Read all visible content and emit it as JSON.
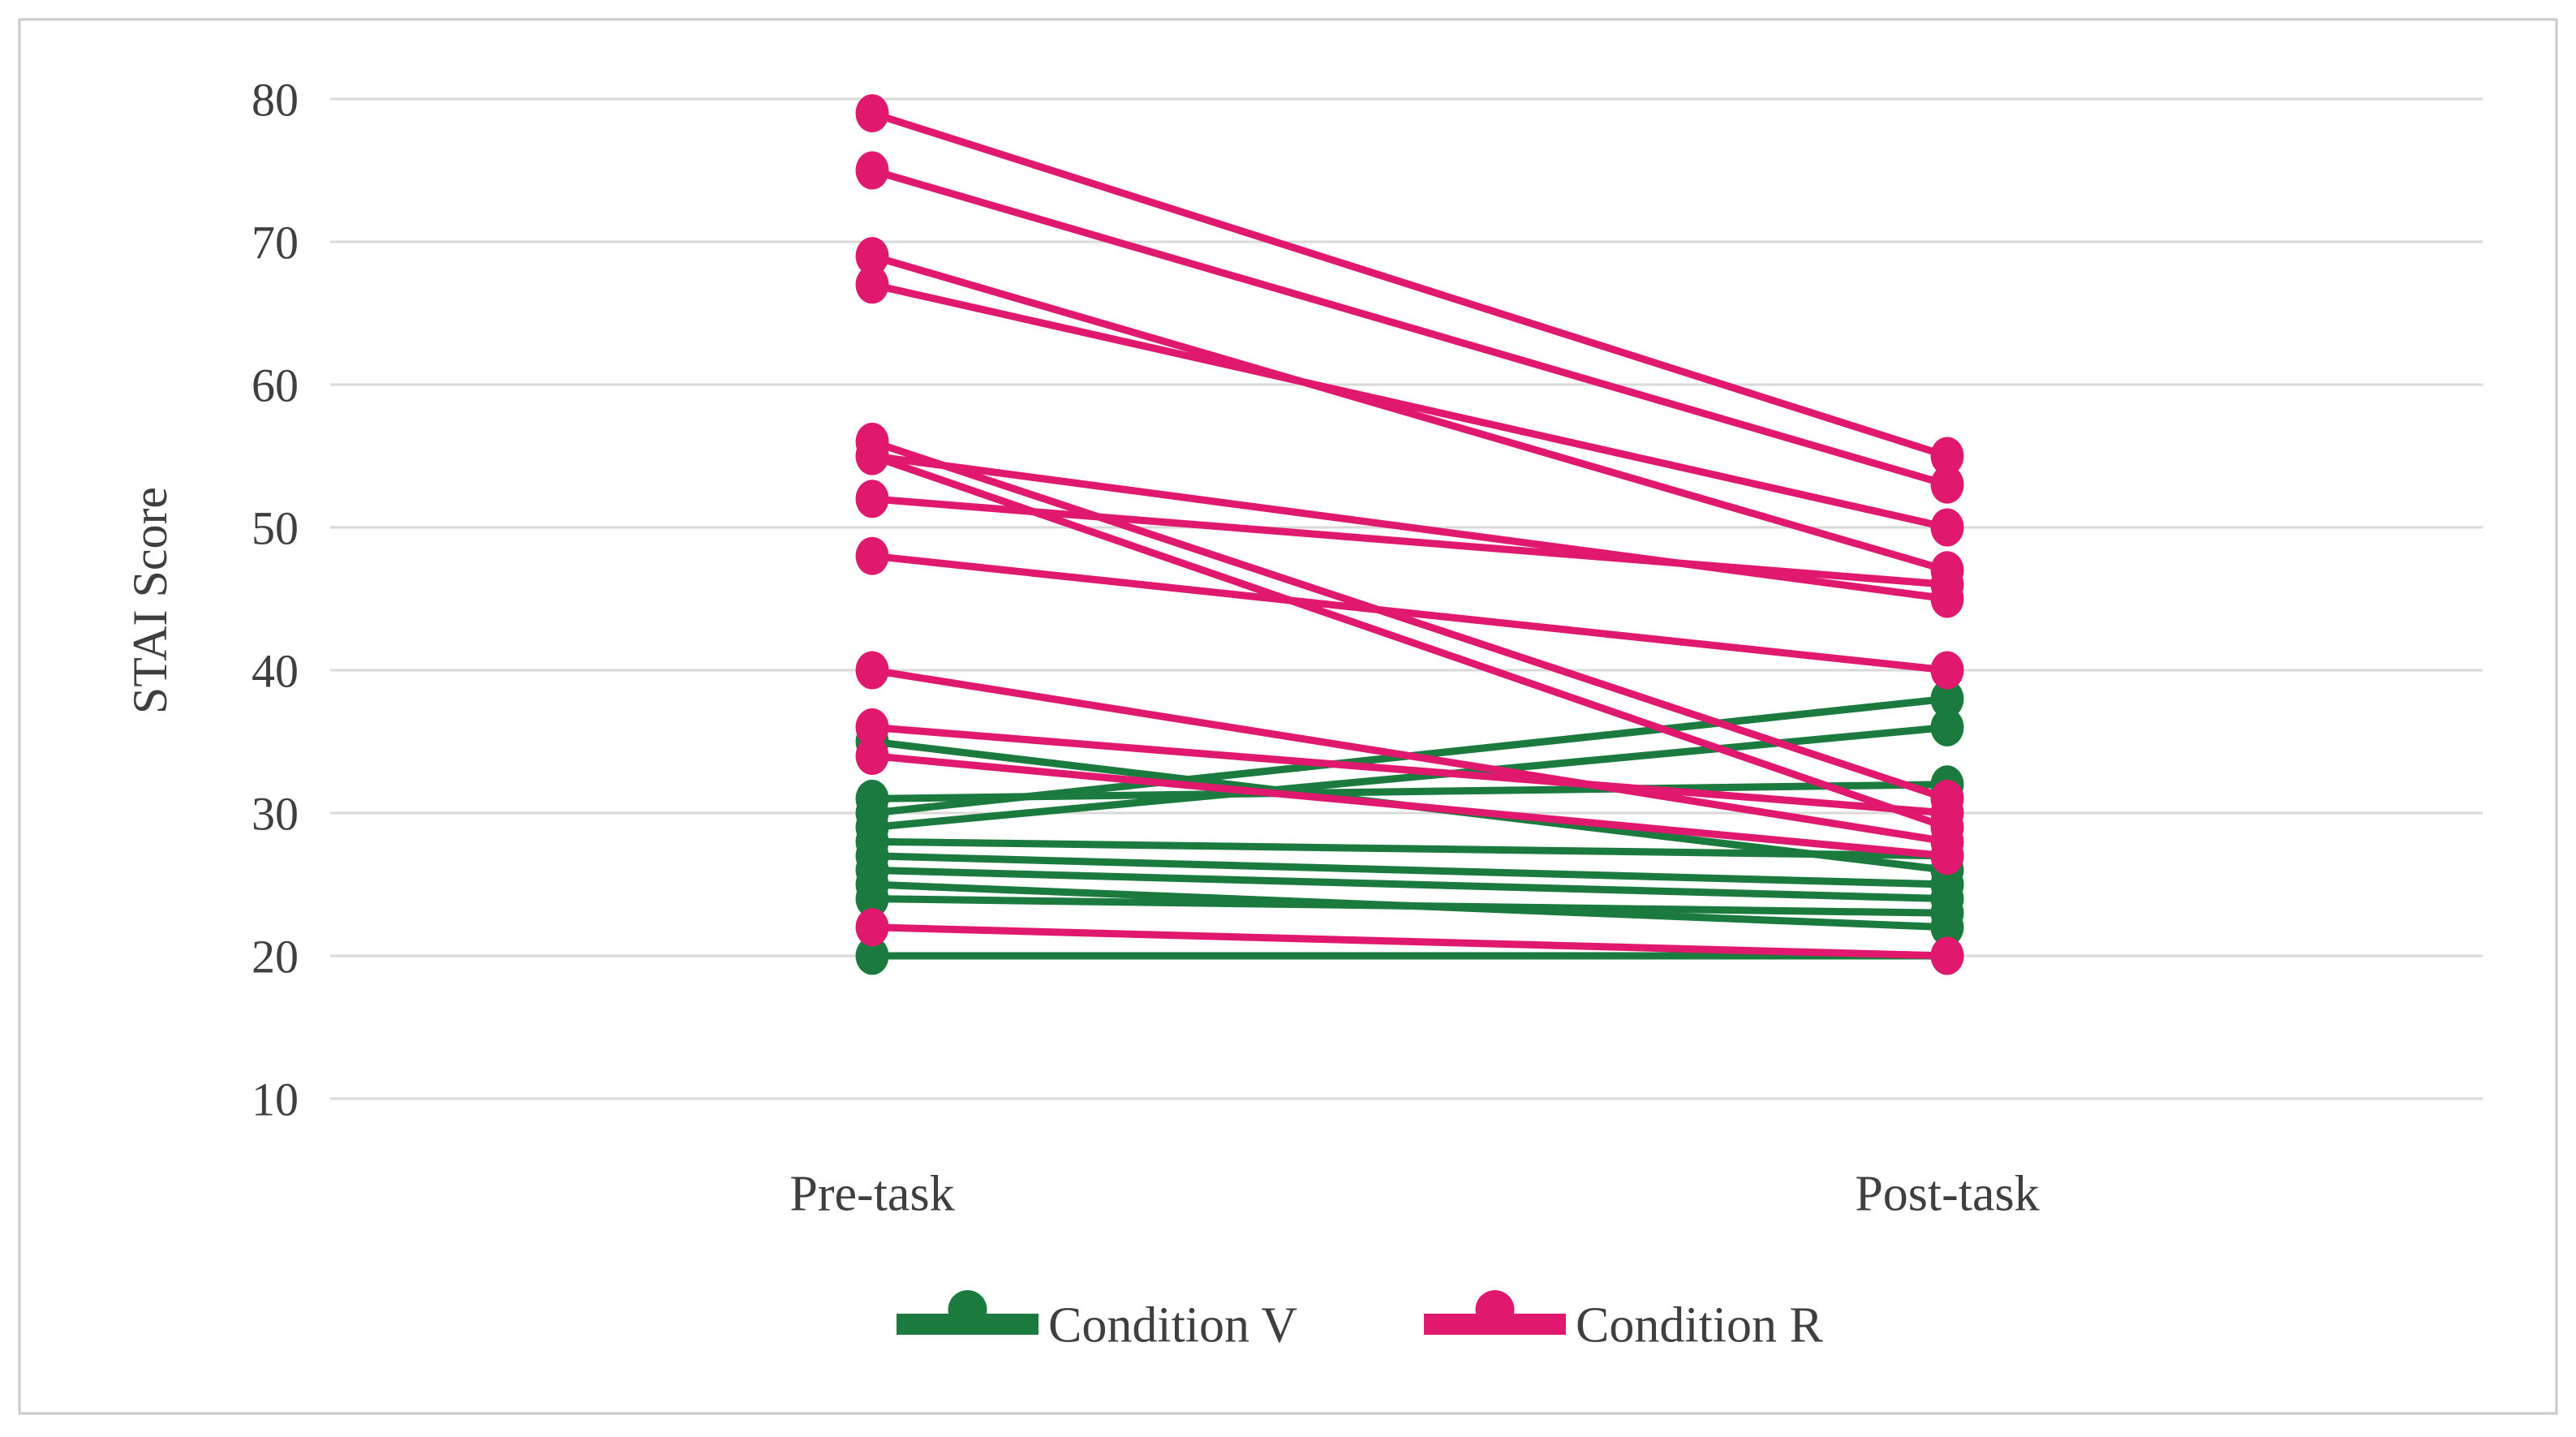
{
  "chart_data": {
    "type": "line",
    "subtype": "paired-slope-chart",
    "title": "",
    "ylabel": "STAI Score",
    "categories": [
      "Pre-task",
      "Post-task"
    ],
    "yticks": [
      80,
      70,
      60,
      50,
      40,
      30,
      20,
      10
    ],
    "axis_range": [
      10,
      80
    ],
    "grid": true,
    "legend_position": "bottom",
    "series": [
      {
        "name": "Condition V",
        "color": "#1B7A3E",
        "pairs": [
          [
            35,
            26
          ],
          [
            31,
            32
          ],
          [
            30,
            38
          ],
          [
            29,
            36
          ],
          [
            28,
            27
          ],
          [
            27,
            25
          ],
          [
            26,
            24
          ],
          [
            25,
            22
          ],
          [
            24,
            23
          ],
          [
            20,
            20
          ]
        ]
      },
      {
        "name": "Condition R",
        "color": "#E0196E",
        "pairs": [
          [
            79,
            55
          ],
          [
            75,
            53
          ],
          [
            69,
            47
          ],
          [
            67,
            50
          ],
          [
            56,
            31
          ],
          [
            55,
            29
          ],
          [
            55,
            45
          ],
          [
            52,
            46
          ],
          [
            48,
            40
          ],
          [
            40,
            28
          ],
          [
            36,
            30
          ],
          [
            34,
            27
          ],
          [
            22,
            20
          ]
        ]
      }
    ],
    "colors": {
      "gridline": "#D9D9D9",
      "frame": "#C9C9C9",
      "text": "#3F3F3F",
      "background": "#FFFFFF"
    }
  }
}
